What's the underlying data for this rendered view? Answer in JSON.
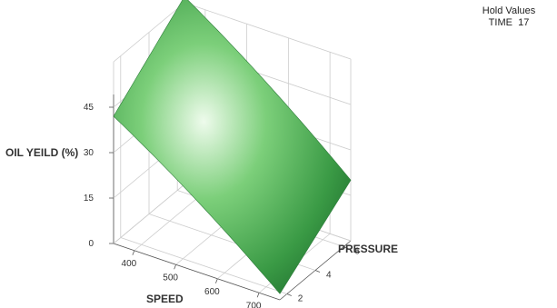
{
  "chart_data": {
    "type": "surface",
    "xlabel": "SPEED",
    "ylabel": "PRESSURE",
    "zlabel": "OIL YEILD (%)",
    "x_ticks": [
      "400",
      "500",
      "600",
      "700"
    ],
    "y_ticks": [
      "2",
      "4",
      "6"
    ],
    "z_ticks": [
      "0",
      "15",
      "30",
      "45"
    ],
    "xlim": [
      350,
      750
    ],
    "ylim": [
      1.5,
      6.5
    ],
    "zlim": [
      0,
      45
    ],
    "surface": {
      "x": [
        350,
        750
      ],
      "y": [
        1.5,
        6.5
      ],
      "z_corners": {
        "x350_y1.5": 42,
        "x350_y6.5": 62,
        "x750_y1.5": 2,
        "x750_y6.5": 20
      }
    },
    "hold_values": {
      "title": "Hold Values",
      "items": [
        {
          "name": "TIME",
          "value": "17"
        }
      ]
    },
    "colors": {
      "surface_light": "#e8fbe6",
      "surface_mid": "#5fbf63",
      "surface_dark": "#1f7a33",
      "grid": "#cccccc",
      "axis": "#555555"
    }
  }
}
